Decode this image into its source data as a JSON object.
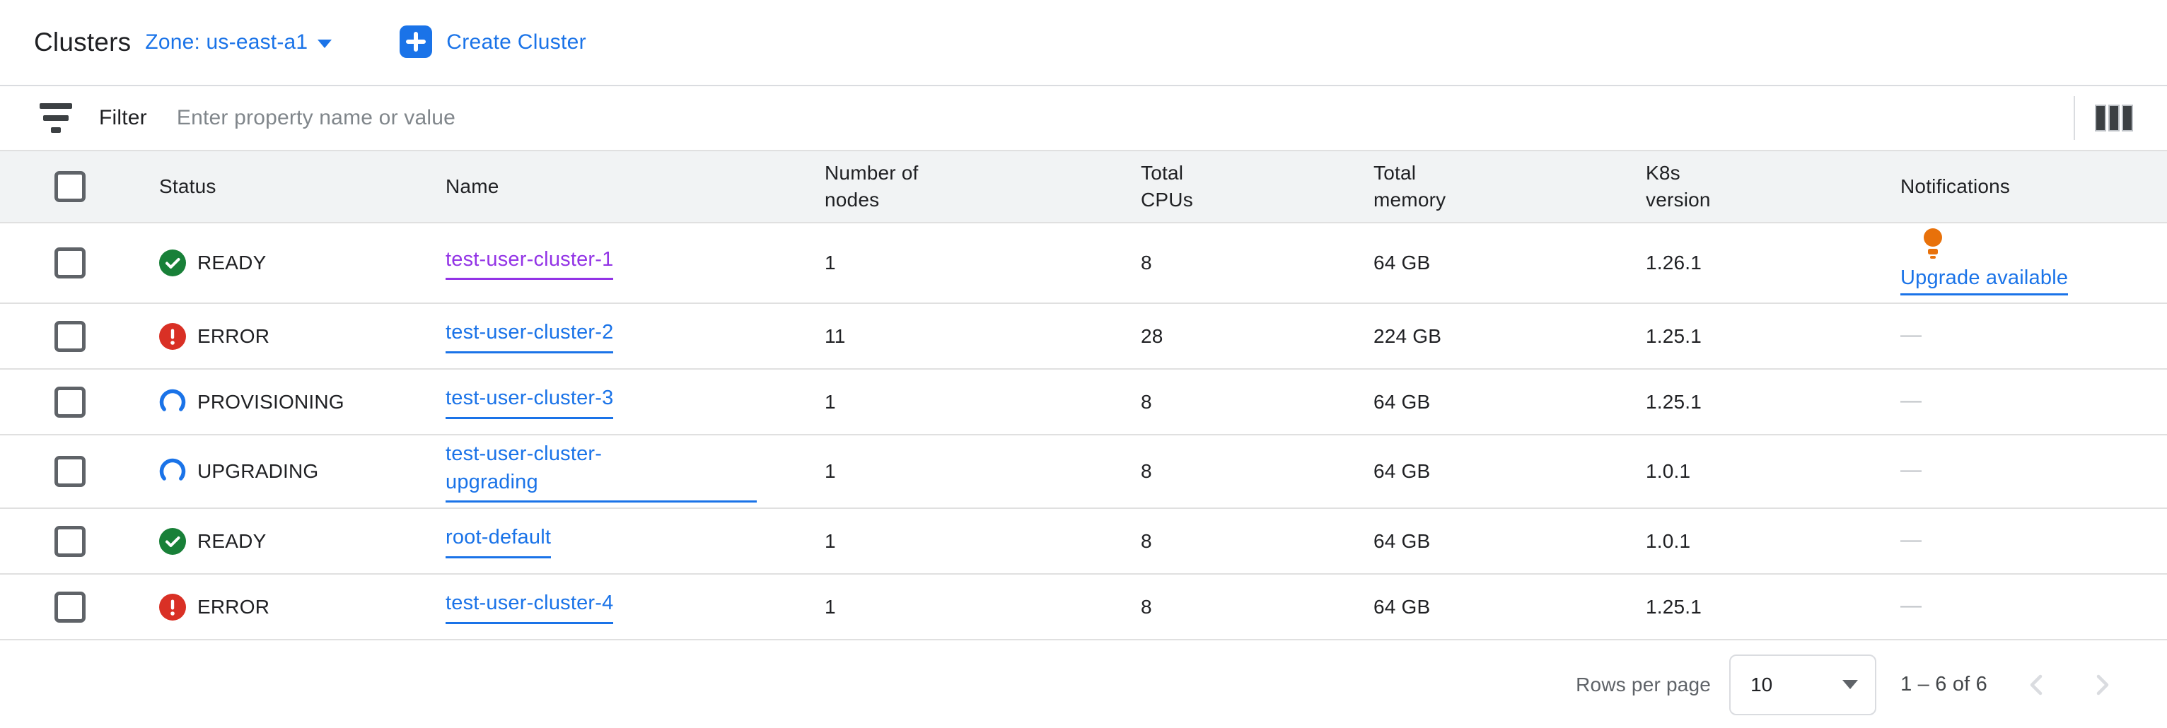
{
  "header": {
    "title": "Clusters",
    "zone_label": "Zone: us-east-a1",
    "create_button_label": "Create Cluster"
  },
  "filter": {
    "label": "Filter",
    "placeholder": "Enter property name or value"
  },
  "table": {
    "columns": [
      {
        "label": "Status"
      },
      {
        "label": "Name"
      },
      {
        "label": "Number of\nnodes"
      },
      {
        "label": "Total\nCPUs"
      },
      {
        "label": "Total\nmemory"
      },
      {
        "label": "K8s\nversion"
      },
      {
        "label": "Notifications"
      }
    ],
    "empty_cell": "—",
    "rows": [
      {
        "status": "READY",
        "status_icon": "ready-icon",
        "name": "test-user-cluster-1",
        "visited": true,
        "nodes": "1",
        "cpus": "8",
        "memory": "64 GB",
        "k8s_version": "1.26.1",
        "notification": "Upgrade available"
      },
      {
        "status": "ERROR",
        "status_icon": "error-icon",
        "name": "test-user-cluster-2",
        "visited": false,
        "nodes": "11",
        "cpus": "28",
        "memory": "224 GB",
        "k8s_version": "1.25.1",
        "notification": null
      },
      {
        "status": "PROVISIONING",
        "status_icon": "spinner-icon",
        "name": "test-user-cluster-3",
        "visited": false,
        "nodes": "1",
        "cpus": "8",
        "memory": "64 GB",
        "k8s_version": "1.25.1",
        "notification": null
      },
      {
        "status": "UPGRADING",
        "status_icon": "spinner-icon",
        "name": "test-user-cluster-\nupgrading",
        "visited": false,
        "nodes": "1",
        "cpus": "8",
        "memory": "64 GB",
        "k8s_version": "1.0.1",
        "notification": null
      },
      {
        "status": "READY",
        "status_icon": "ready-icon",
        "name": "root-default",
        "visited": false,
        "nodes": "1",
        "cpus": "8",
        "memory": "64 GB",
        "k8s_version": "1.0.1",
        "notification": null
      },
      {
        "status": "ERROR",
        "status_icon": "error-icon",
        "name": "test-user-cluster-4",
        "visited": false,
        "nodes": "1",
        "cpus": "8",
        "memory": "64 GB",
        "k8s_version": "1.25.1",
        "notification": null
      }
    ]
  },
  "pagination": {
    "rows_per_page_label": "Rows per page",
    "page_size": "10",
    "range_label": "1 – 6 of 6"
  },
  "colors": {
    "accent_blue": "#1a73e8",
    "visited_purple": "#9334e6",
    "status_green": "#188038",
    "status_red": "#d93025",
    "notification_orange": "#e8710a"
  }
}
